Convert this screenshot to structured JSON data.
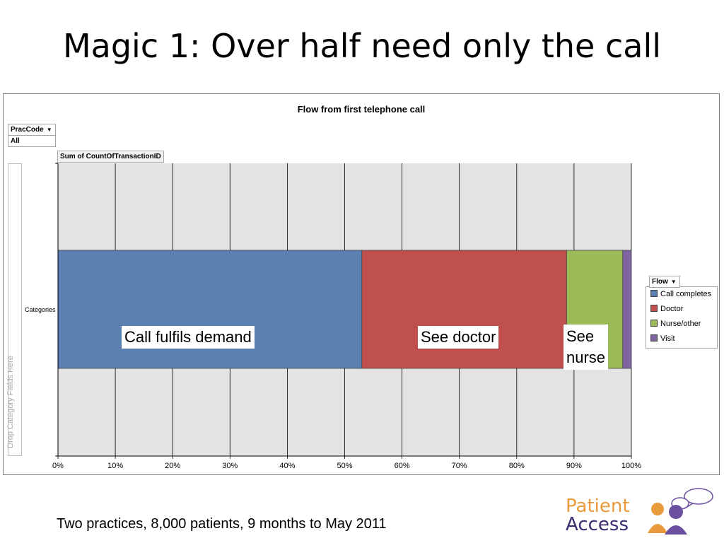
{
  "slide": {
    "title": "Magic 1: Over half need only the call",
    "footnote": "Two practices, 8,000 patients, 9 months to May 2011"
  },
  "pivot": {
    "filter_field": "PracCode",
    "filter_value": "All",
    "data_field": "Sum of CountOfTransactionID",
    "drop_zone": "Drop Category Fields Here",
    "category_label": "Categories",
    "legend_field": "Flow",
    "dropdown_icon": "dropdown-triangle-icon"
  },
  "chart_data": {
    "type": "bar",
    "orientation": "horizontal",
    "stacked": "percent",
    "title": "Flow from first telephone call",
    "xlabel": "",
    "ylabel": "",
    "xlim": [
      0,
      100
    ],
    "x_ticks": [
      "0%",
      "10%",
      "20%",
      "30%",
      "40%",
      "50%",
      "60%",
      "70%",
      "80%",
      "90%",
      "100%"
    ],
    "grid": true,
    "legend_position": "right",
    "categories": [
      "Categories"
    ],
    "series": [
      {
        "name": "Call completes",
        "values": [
          53
        ],
        "color": "#5b80b2"
      },
      {
        "name": "Doctor",
        "values": [
          35.7
        ],
        "color": "#c0504d"
      },
      {
        "name": "Nurse/other",
        "values": [
          9.8
        ],
        "color": "#9bbb59"
      },
      {
        "name": "Visit",
        "values": [
          1.5
        ],
        "color": "#8064a2"
      }
    ],
    "annotations": [
      "Call fulfils demand",
      "See doctor",
      "See",
      "nurse"
    ]
  },
  "logo": {
    "line1": "Patient",
    "line2": "Access",
    "colors": {
      "text": "#3b2a6e",
      "accent": "#e89a3c",
      "purple": "#6b4fa0"
    }
  }
}
